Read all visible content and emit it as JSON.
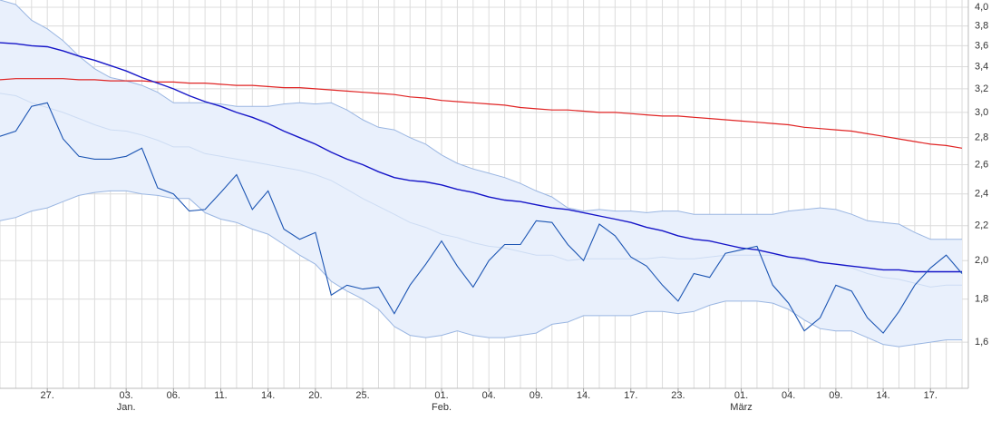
{
  "chart_data": {
    "type": "line",
    "ylog": true,
    "grid": true,
    "ylim": [
      1.41,
      4.08
    ],
    "xlim": [
      0,
      61.4
    ],
    "yticks": [
      {
        "value": 1.6,
        "label": "1,6"
      },
      {
        "value": 1.8,
        "label": "1,8"
      },
      {
        "value": 2.0,
        "label": "2,0"
      },
      {
        "value": 2.2,
        "label": "2,2"
      },
      {
        "value": 2.4,
        "label": "2,4"
      },
      {
        "value": 2.6,
        "label": "2,6"
      },
      {
        "value": 2.8,
        "label": "2,8"
      },
      {
        "value": 3.0,
        "label": "3,0"
      },
      {
        "value": 3.2,
        "label": "3,2"
      },
      {
        "value": 3.4,
        "label": "3,4"
      },
      {
        "value": 3.6,
        "label": "3,6"
      },
      {
        "value": 3.8,
        "label": "3,8"
      },
      {
        "value": 4.0,
        "label": "4,0"
      }
    ],
    "categories": [
      null,
      null,
      null,
      "27.",
      null,
      null,
      null,
      null,
      "03.",
      null,
      null,
      "06.",
      null,
      null,
      "11.",
      null,
      null,
      "14.",
      null,
      null,
      "20.",
      null,
      null,
      "25.",
      null,
      null,
      null,
      null,
      "01.",
      null,
      null,
      "04.",
      null,
      null,
      "09.",
      null,
      null,
      "14.",
      null,
      null,
      "17.",
      null,
      null,
      "23.",
      null,
      null,
      null,
      "01.",
      null,
      null,
      "04.",
      null,
      null,
      "09.",
      null,
      null,
      "14.",
      null,
      null,
      "17.",
      null,
      null
    ],
    "months": [
      null,
      null,
      null,
      null,
      null,
      null,
      null,
      null,
      "Jan.",
      null,
      null,
      null,
      null,
      null,
      null,
      null,
      null,
      null,
      null,
      null,
      null,
      null,
      null,
      null,
      null,
      null,
      null,
      null,
      "Feb.",
      null,
      null,
      null,
      null,
      null,
      null,
      null,
      null,
      null,
      null,
      null,
      null,
      null,
      null,
      null,
      null,
      null,
      null,
      "März",
      null,
      null,
      null,
      null,
      null,
      null,
      null,
      null,
      null,
      null,
      null,
      null,
      null,
      null
    ],
    "band": {
      "line_color": "#9ab6e2",
      "middle_color": "#cddcf3",
      "fill": "#e9f0fc",
      "upper": [
        4.08,
        4.03,
        3.86,
        3.77,
        3.65,
        3.5,
        3.38,
        3.3,
        3.27,
        3.23,
        3.17,
        3.08,
        3.08,
        3.08,
        3.07,
        3.05,
        3.05,
        3.05,
        3.07,
        3.08,
        3.07,
        3.08,
        3.02,
        2.94,
        2.88,
        2.86,
        2.8,
        2.75,
        2.67,
        2.61,
        2.57,
        2.54,
        2.51,
        2.47,
        2.42,
        2.38,
        2.31,
        2.29,
        2.3,
        2.29,
        2.29,
        2.28,
        2.29,
        2.29,
        2.27,
        2.27,
        2.27,
        2.27,
        2.27,
        2.27,
        2.29,
        2.3,
        2.31,
        2.3,
        2.27,
        2.23,
        2.22,
        2.21,
        2.16,
        2.12,
        2.12,
        2.12
      ],
      "middle": [
        3.16,
        3.14,
        3.08,
        3.04,
        3.0,
        2.95,
        2.9,
        2.86,
        2.85,
        2.82,
        2.78,
        2.73,
        2.73,
        2.68,
        2.66,
        2.64,
        2.62,
        2.6,
        2.58,
        2.56,
        2.53,
        2.49,
        2.43,
        2.37,
        2.32,
        2.27,
        2.22,
        2.19,
        2.15,
        2.13,
        2.1,
        2.08,
        2.07,
        2.05,
        2.03,
        2.03,
        2.0,
        2.01,
        2.01,
        2.01,
        2.01,
        2.01,
        2.02,
        2.01,
        2.01,
        2.02,
        2.03,
        2.03,
        2.03,
        2.03,
        2.02,
        2.0,
        1.99,
        1.98,
        1.96,
        1.93,
        1.91,
        1.9,
        1.88,
        1.86,
        1.87,
        1.87
      ],
      "lower": [
        2.23,
        2.25,
        2.29,
        2.31,
        2.35,
        2.39,
        2.41,
        2.42,
        2.42,
        2.4,
        2.39,
        2.37,
        2.37,
        2.28,
        2.24,
        2.22,
        2.18,
        2.15,
        2.09,
        2.03,
        1.98,
        1.89,
        1.84,
        1.8,
        1.75,
        1.67,
        1.63,
        1.62,
        1.63,
        1.65,
        1.63,
        1.62,
        1.62,
        1.63,
        1.64,
        1.68,
        1.69,
        1.72,
        1.72,
        1.72,
        1.72,
        1.74,
        1.74,
        1.73,
        1.74,
        1.77,
        1.79,
        1.79,
        1.79,
        1.78,
        1.75,
        1.7,
        1.66,
        1.65,
        1.65,
        1.62,
        1.59,
        1.58,
        1.59,
        1.6,
        1.61,
        1.61
      ]
    },
    "series": [
      {
        "color": "#e02424",
        "width": 1.2,
        "values": [
          3.28,
          3.29,
          3.29,
          3.29,
          3.29,
          3.28,
          3.28,
          3.27,
          3.27,
          3.27,
          3.26,
          3.26,
          3.25,
          3.25,
          3.24,
          3.23,
          3.23,
          3.22,
          3.21,
          3.21,
          3.2,
          3.19,
          3.18,
          3.17,
          3.16,
          3.15,
          3.13,
          3.12,
          3.1,
          3.09,
          3.08,
          3.07,
          3.06,
          3.04,
          3.03,
          3.02,
          3.02,
          3.01,
          3.0,
          3.0,
          2.99,
          2.98,
          2.97,
          2.97,
          2.96,
          2.95,
          2.94,
          2.93,
          2.92,
          2.91,
          2.9,
          2.88,
          2.87,
          2.86,
          2.85,
          2.83,
          2.81,
          2.79,
          2.77,
          2.75,
          2.74,
          2.72
        ]
      },
      {
        "color": "#1515c8",
        "width": 1.4,
        "values": [
          3.63,
          3.62,
          3.6,
          3.59,
          3.55,
          3.5,
          3.46,
          3.41,
          3.36,
          3.3,
          3.25,
          3.2,
          3.14,
          3.09,
          3.05,
          3.0,
          2.96,
          2.91,
          2.85,
          2.8,
          2.75,
          2.69,
          2.64,
          2.6,
          2.55,
          2.51,
          2.49,
          2.48,
          2.46,
          2.43,
          2.41,
          2.38,
          2.36,
          2.35,
          2.33,
          2.31,
          2.3,
          2.28,
          2.26,
          2.24,
          2.22,
          2.19,
          2.17,
          2.14,
          2.12,
          2.11,
          2.09,
          2.07,
          2.06,
          2.04,
          2.02,
          2.01,
          1.99,
          1.98,
          1.97,
          1.96,
          1.95,
          1.95,
          1.94,
          1.94,
          1.94,
          1.94
        ]
      },
      {
        "color": "#1c55b3",
        "width": 1.1,
        "values": [
          2.81,
          2.85,
          3.05,
          3.08,
          2.79,
          2.66,
          2.64,
          2.64,
          2.66,
          2.72,
          2.44,
          2.4,
          2.29,
          2.3,
          2.41,
          2.53,
          2.3,
          2.42,
          2.18,
          2.12,
          2.16,
          1.82,
          1.87,
          1.85,
          1.86,
          1.73,
          1.87,
          1.98,
          2.11,
          1.97,
          1.86,
          2.0,
          2.09,
          2.09,
          2.23,
          2.22,
          2.09,
          2.0,
          2.21,
          2.14,
          2.02,
          1.97,
          1.87,
          1.79,
          1.93,
          1.91,
          2.04,
          2.06,
          2.08,
          1.87,
          1.78,
          1.65,
          1.71,
          1.87,
          1.84,
          1.71,
          1.64,
          1.74,
          1.87,
          1.96,
          2.03,
          1.93
        ]
      }
    ]
  }
}
